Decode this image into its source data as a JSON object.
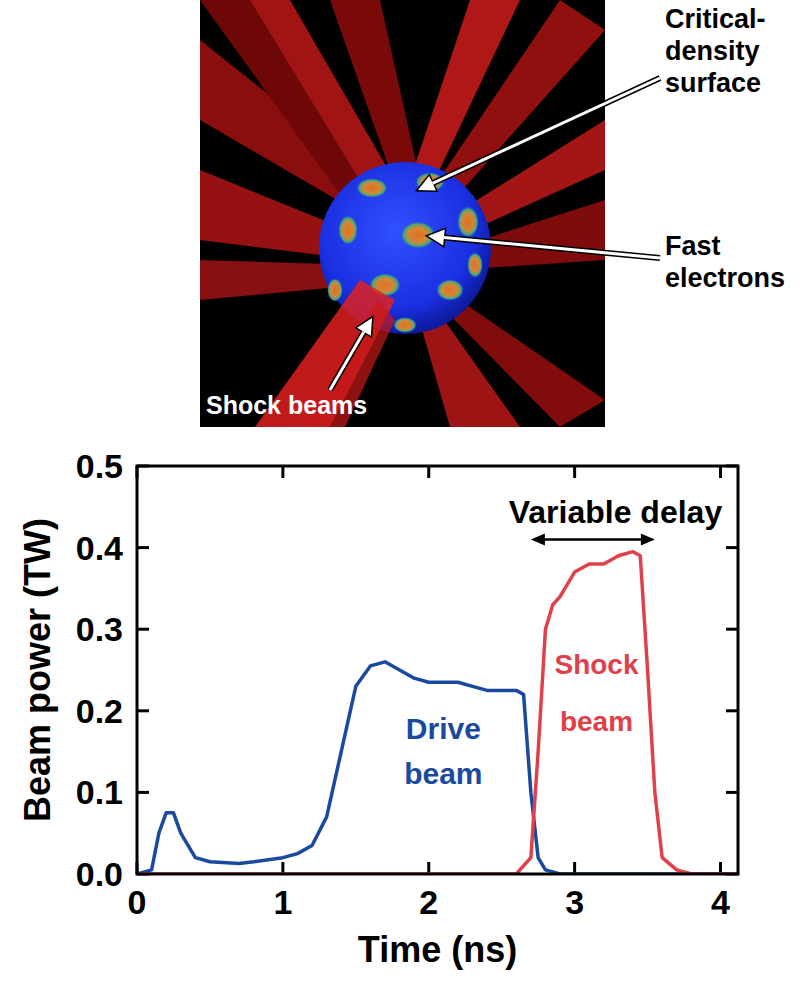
{
  "image": {
    "labels": [
      "Critical-density surface",
      "Fast electrons",
      "Shock beams"
    ]
  },
  "chart_data": {
    "type": "line",
    "x_label": "Time (ns)",
    "y_label": "Beam power (TW)",
    "xlim": [
      0,
      4.12
    ],
    "ylim": [
      0,
      0.5
    ],
    "xticks": [
      0,
      1,
      2,
      3,
      4
    ],
    "yticks": [
      {
        "value": 0,
        "label": "0.0"
      },
      {
        "value": 0.1,
        "label": "0.1"
      },
      {
        "value": 0.2,
        "label": "0.2"
      },
      {
        "value": 0.3,
        "label": "0.3"
      },
      {
        "value": 0.4,
        "label": "0.4"
      },
      {
        "value": 0.5,
        "label": "0.5"
      }
    ],
    "grid": false,
    "series": [
      {
        "name": "Drive beam",
        "color": "#1a4aa0",
        "x": [
          0,
          0.1,
          0.15,
          0.2,
          0.25,
          0.3,
          0.4,
          0.5,
          0.7,
          0.8,
          1.0,
          1.1,
          1.2,
          1.3,
          1.4,
          1.5,
          1.6,
          1.7,
          1.8,
          1.9,
          2.0,
          2.1,
          2.2,
          2.3,
          2.4,
          2.5,
          2.6,
          2.65,
          2.7,
          2.75,
          2.8,
          2.9,
          3.0,
          4.1
        ],
        "values": [
          0,
          0.005,
          0.05,
          0.075,
          0.075,
          0.05,
          0.02,
          0.015,
          0.013,
          0.015,
          0.02,
          0.025,
          0.035,
          0.07,
          0.15,
          0.23,
          0.255,
          0.26,
          0.25,
          0.24,
          0.235,
          0.235,
          0.235,
          0.23,
          0.225,
          0.225,
          0.225,
          0.22,
          0.1,
          0.02,
          0.005,
          0,
          0,
          0
        ]
      },
      {
        "name": "Shock beam",
        "color": "#e0404a",
        "x": [
          0,
          2.6,
          2.7,
          2.75,
          2.8,
          2.85,
          2.9,
          3.0,
          3.1,
          3.2,
          3.3,
          3.4,
          3.45,
          3.5,
          3.55,
          3.6,
          3.7,
          3.8,
          4.1
        ],
        "values": [
          0,
          0,
          0.02,
          0.15,
          0.3,
          0.33,
          0.34,
          0.37,
          0.38,
          0.38,
          0.39,
          0.395,
          0.39,
          0.25,
          0.1,
          0.02,
          0.005,
          0,
          0
        ]
      }
    ],
    "annotations": [
      {
        "text": "Variable delay",
        "x": 3.28,
        "y": 0.445,
        "arrow_x": [
          2.7,
          3.55
        ],
        "arrow_y": 0.41
      }
    ]
  }
}
